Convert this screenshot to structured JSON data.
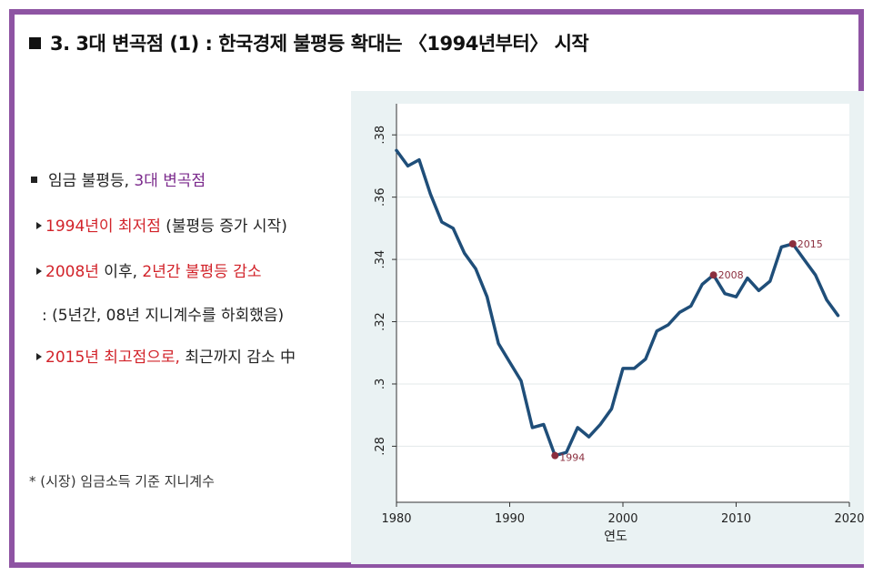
{
  "title": "3. 3대 변곡점 (1) : 한국경제 불평등 확대는 〈1994년부터〉 시작",
  "bullets": {
    "main_prefix": "임금 불평등, ",
    "main_highlight": "3대 변곡점",
    "b1_red": "1994년이 최저점",
    "b1_rest": " (불평등 증가 시작)",
    "b2_red1": "2008년",
    "b2_mid": " 이후, ",
    "b2_red2": "2년간 불평등 감소",
    "b2_sub": ": (5년간, 08년 지니계수를 하회했음)",
    "b3_red": "2015년 최고점으로,",
    "b3_rest": " 최근까지 감소 中"
  },
  "note": "* (시장) 임금소득 기준 지니계수",
  "chart_data": {
    "type": "line",
    "xlabel": "연도",
    "ylabel": "",
    "xlim": [
      1980,
      2020
    ],
    "ylim": [
      0.262,
      0.39
    ],
    "xticks": [
      1980,
      1990,
      2000,
      2010,
      2020
    ],
    "xtick_labels": [
      "1980",
      "1990",
      "2000",
      "2010",
      "2020"
    ],
    "yticks": [
      0.28,
      0.3,
      0.32,
      0.34,
      0.36,
      0.38
    ],
    "ytick_labels": [
      ".28",
      ".3",
      ".32",
      ".34",
      ".36",
      ".38"
    ],
    "grid": true,
    "line_color": "#1f4e79",
    "marker_color": "#8b2e3e",
    "series": [
      {
        "x": [
          1980,
          1981,
          1982,
          1983,
          1984,
          1985,
          1986,
          1987,
          1988,
          1989,
          1990,
          1991,
          1992,
          1993,
          1994,
          1995,
          1996,
          1997,
          1998,
          1999,
          2000,
          2001,
          2002,
          2003,
          2004,
          2005,
          2006,
          2007,
          2008,
          2009,
          2010,
          2011,
          2012,
          2013,
          2014,
          2015,
          2016,
          2017,
          2018,
          2019
        ],
        "values": [
          0.375,
          0.37,
          0.372,
          0.361,
          0.352,
          0.35,
          0.342,
          0.337,
          0.328,
          0.313,
          0.307,
          0.301,
          0.286,
          0.287,
          0.277,
          0.278,
          0.286,
          0.283,
          0.287,
          0.292,
          0.305,
          0.305,
          0.308,
          0.317,
          0.319,
          0.323,
          0.325,
          0.332,
          0.335,
          0.329,
          0.328,
          0.334,
          0.33,
          0.333,
          0.344,
          0.345,
          0.34,
          0.335,
          0.327,
          0.322
        ]
      }
    ],
    "annotations": [
      {
        "x": 1994,
        "y": 0.277,
        "label": "1994"
      },
      {
        "x": 2008,
        "y": 0.335,
        "label": "2008"
      },
      {
        "x": 2015,
        "y": 0.345,
        "label": "2015"
      }
    ]
  }
}
